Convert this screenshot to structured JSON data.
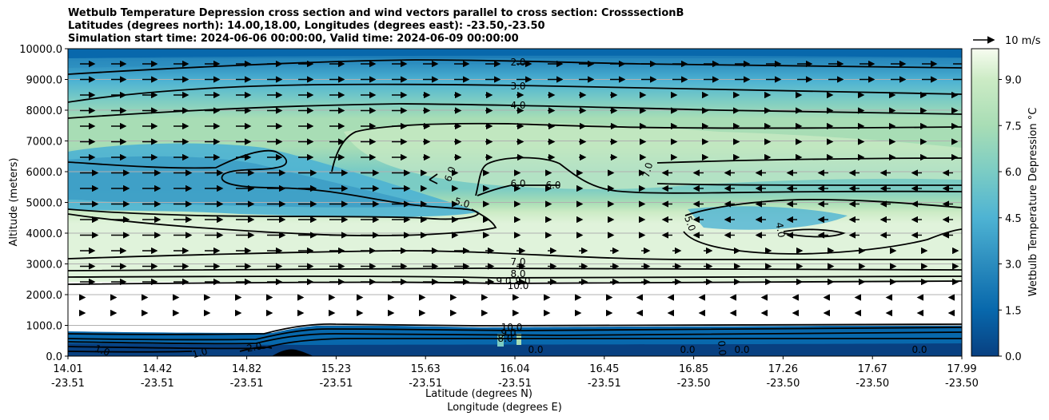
{
  "chart_data": {
    "type": "cross_section_contour",
    "title": [
      "Wetbulb Temperature Depression cross section and wind vectors parallel to cross section: CrosssectionB",
      "Latitudes (degrees north): 14.00,18.00, Longitudes (degrees east): -23.50,-23.50",
      "Simulation start time: 2024-06-06 00:00:00, Valid time: 2024-06-09 00:00:00"
    ],
    "ylabel": "Altitude (meters)",
    "xlabel": "Latitude (degrees N)",
    "xlabel2": "Longitude (degrees E)",
    "ylim": [
      0,
      10000
    ],
    "y_ticks": [
      "0.0",
      "1000.0",
      "2000.0",
      "3000.0",
      "4000.0",
      "5000.0",
      "6000.0",
      "7000.0",
      "8000.0",
      "9000.0",
      "10000.0"
    ],
    "y_tick_values": [
      0,
      1000,
      2000,
      3000,
      4000,
      5000,
      6000,
      7000,
      8000,
      9000,
      10000
    ],
    "x_ticks": [
      {
        "lat": "14.01",
        "lon": "-23.51"
      },
      {
        "lat": "14.42",
        "lon": "-23.51"
      },
      {
        "lat": "14.82",
        "lon": "-23.51"
      },
      {
        "lat": "15.23",
        "lon": "-23.51"
      },
      {
        "lat": "15.63",
        "lon": "-23.51"
      },
      {
        "lat": "16.04",
        "lon": "-23.51"
      },
      {
        "lat": "16.45",
        "lon": "-23.51"
      },
      {
        "lat": "16.85",
        "lon": "-23.50"
      },
      {
        "lat": "17.26",
        "lon": "-23.50"
      },
      {
        "lat": "17.67",
        "lon": "-23.50"
      },
      {
        "lat": "17.99",
        "lon": "-23.50"
      }
    ],
    "colorbar": {
      "label": "Wetbulb Temperature Depression $^\\circ$C",
      "label_display": "Wetbulb Temperature Depression °C",
      "range": [
        0,
        10
      ],
      "ticks": [
        "0.0",
        "1.5",
        "3.0",
        "4.5",
        "6.0",
        "7.5",
        "9.0"
      ],
      "tick_values": [
        0,
        1.5,
        3.0,
        4.5,
        6.0,
        7.5,
        9.0
      ],
      "colormap": "GnBu_r"
    },
    "contour_labels": [
      "2.0",
      "3.0",
      "4.0",
      "6.0",
      "6.0",
      "6.0",
      "5.0",
      "7.0",
      "5.0",
      "4.0",
      "7.0",
      "8.0",
      "9.0",
      "9.0",
      "10.0",
      "1.0",
      "1.0",
      "2.0",
      "10.0",
      "9.0",
      "8.0",
      "0.0",
      "0.0",
      "0.0",
      "0.0",
      "0.0"
    ],
    "wind_reference": {
      "label": "10 m/s",
      "value": 10,
      "units": "m/s"
    },
    "no_data_band_m": [
      1000,
      2500
    ]
  }
}
